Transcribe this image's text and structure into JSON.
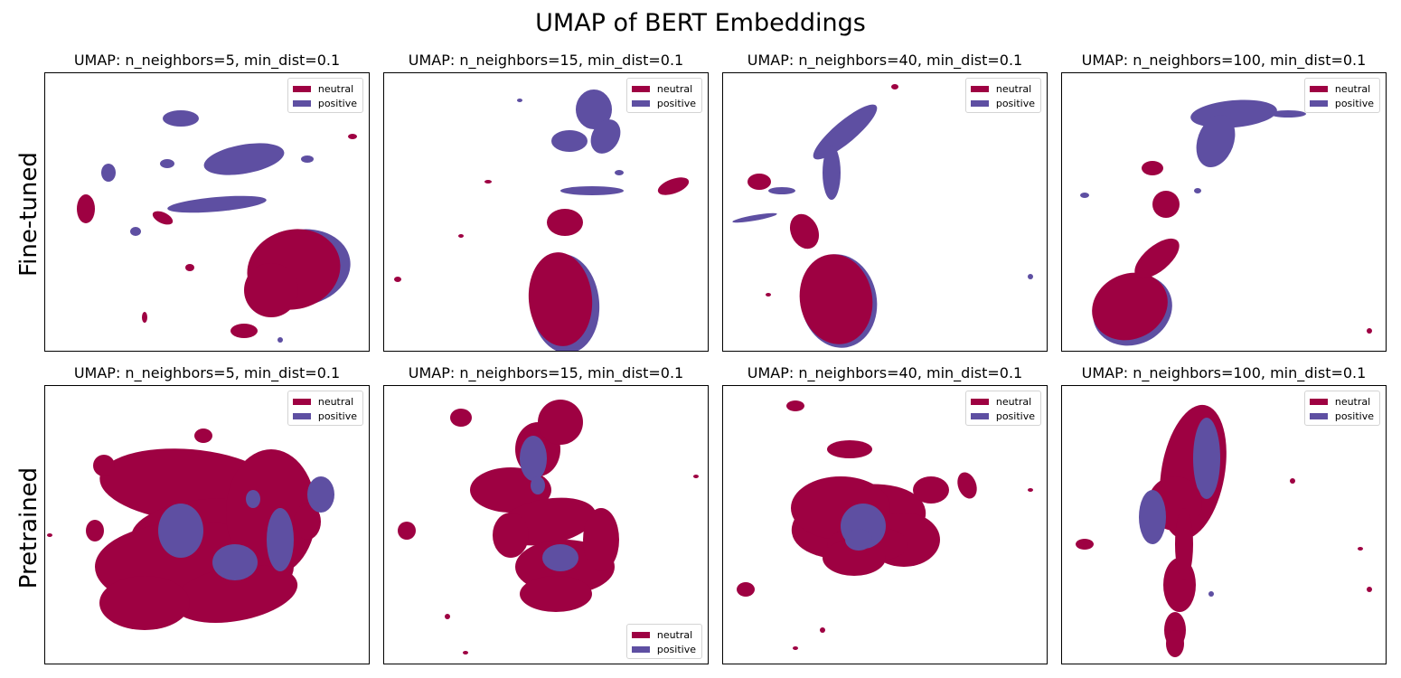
{
  "figure": {
    "title": "UMAP of BERT Embeddings",
    "row_labels": [
      "Fine-tuned",
      "Pretrained"
    ]
  },
  "colors": {
    "neutral": "#9e0142",
    "positive": "#5e4fa2"
  },
  "chart_data": [
    {
      "type": "scatter",
      "row": "Fine-tuned",
      "title": "UMAP: n_neighbors=5, min_dist=0.1",
      "legend": [
        "neutral",
        "positive"
      ],
      "legend_placement": "top-right",
      "grid": false,
      "ticks": false
    },
    {
      "type": "scatter",
      "row": "Fine-tuned",
      "title": "UMAP: n_neighbors=15, min_dist=0.1",
      "legend": [
        "neutral",
        "positive"
      ],
      "legend_placement": "top-right",
      "grid": false,
      "ticks": false
    },
    {
      "type": "scatter",
      "row": "Fine-tuned",
      "title": "UMAP: n_neighbors=40, min_dist=0.1",
      "legend": [
        "neutral",
        "positive"
      ],
      "legend_placement": "top-right",
      "grid": false,
      "ticks": false
    },
    {
      "type": "scatter",
      "row": "Fine-tuned",
      "title": "UMAP: n_neighbors=100, min_dist=0.1",
      "legend": [
        "neutral",
        "positive"
      ],
      "legend_placement": "top-right",
      "grid": false,
      "ticks": false
    },
    {
      "type": "scatter",
      "row": "Pretrained",
      "title": "UMAP: n_neighbors=5, min_dist=0.1",
      "legend": [
        "neutral",
        "positive"
      ],
      "legend_placement": "top-right",
      "grid": false,
      "ticks": false
    },
    {
      "type": "scatter",
      "row": "Pretrained",
      "title": "UMAP: n_neighbors=15, min_dist=0.1",
      "legend": [
        "neutral",
        "positive"
      ],
      "legend_placement": "bottom-right",
      "grid": false,
      "ticks": false
    },
    {
      "type": "scatter",
      "row": "Pretrained",
      "title": "UMAP: n_neighbors=40, min_dist=0.1",
      "legend": [
        "neutral",
        "positive"
      ],
      "legend_placement": "top-right",
      "grid": false,
      "ticks": false
    },
    {
      "type": "scatter",
      "row": "Pretrained",
      "title": "UMAP: n_neighbors=100, min_dist=0.1",
      "legend": [
        "neutral",
        "positive"
      ],
      "legend_placement": "top-right",
      "grid": false,
      "ticks": false
    }
  ]
}
